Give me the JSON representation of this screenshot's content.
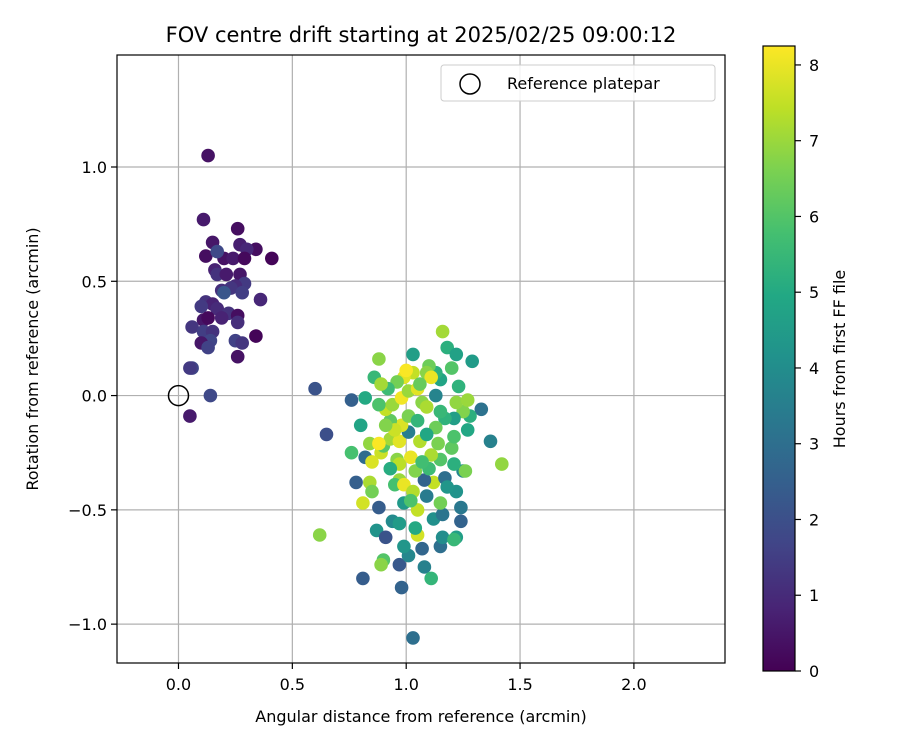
{
  "chart_data": {
    "type": "scatter",
    "title": "FOV centre drift starting at 2025/02/25 09:00:12",
    "xlabel": "Angular distance from reference (arcmin)",
    "ylabel": "Rotation from reference (arcmin)",
    "xlim": [
      -0.27,
      2.4
    ],
    "ylim": [
      -1.17,
      1.49
    ],
    "grid": true,
    "x_ticks": [
      "0.0",
      "0.5",
      "1.0",
      "1.5",
      "2.0"
    ],
    "x_tick_values": [
      0,
      0.5,
      1.0,
      1.5,
      2.0
    ],
    "y_ticks": [
      "−1.0",
      "−0.5",
      "0.0",
      "0.5",
      "1.0"
    ],
    "y_tick_values": [
      -1.0,
      -0.5,
      0.0,
      0.5,
      1.0
    ],
    "legend": {
      "placement": "top-right",
      "entries": [
        {
          "label": "Reference platepar",
          "marker": "open-circle",
          "color": "#000000"
        }
      ]
    },
    "reference_point": {
      "x": 0.0,
      "y": 0.0
    },
    "colorbar": {
      "label": "Hours from first FF file",
      "colormap": "viridis",
      "range": [
        0,
        8.25
      ],
      "ticks": [
        "0",
        "1",
        "2",
        "3",
        "4",
        "5",
        "6",
        "7",
        "8"
      ],
      "tick_values": [
        0,
        1,
        2,
        3,
        4,
        5,
        6,
        7,
        8
      ]
    },
    "points": [
      [
        0.13,
        1.05,
        0.4
      ],
      [
        0.11,
        0.77,
        0.6
      ],
      [
        0.26,
        0.73,
        0.3
      ],
      [
        0.15,
        0.67,
        0.5
      ],
      [
        0.27,
        0.66,
        0.7
      ],
      [
        0.34,
        0.64,
        0.3
      ],
      [
        0.3,
        0.64,
        0.9
      ],
      [
        0.41,
        0.6,
        0.1
      ],
      [
        0.12,
        0.61,
        0.3
      ],
      [
        0.2,
        0.6,
        0.4
      ],
      [
        0.24,
        0.6,
        0.6
      ],
      [
        0.29,
        0.6,
        0.2
      ],
      [
        0.17,
        0.63,
        1.8
      ],
      [
        0.16,
        0.55,
        0.8
      ],
      [
        0.27,
        0.53,
        0.5
      ],
      [
        0.17,
        0.53,
        1.2
      ],
      [
        0.21,
        0.53,
        0.6
      ],
      [
        0.29,
        0.49,
        1.4
      ],
      [
        0.25,
        0.48,
        1.0
      ],
      [
        0.23,
        0.47,
        1.3
      ],
      [
        0.19,
        0.46,
        1.1
      ],
      [
        0.2,
        0.45,
        2.2
      ],
      [
        0.28,
        0.45,
        1.5
      ],
      [
        0.36,
        0.42,
        0.9
      ],
      [
        0.12,
        0.41,
        1.2
      ],
      [
        0.15,
        0.4,
        0.8
      ],
      [
        0.1,
        0.39,
        1.4
      ],
      [
        0.17,
        0.38,
        1.0
      ],
      [
        0.22,
        0.36,
        1.2
      ],
      [
        0.26,
        0.35,
        0.3
      ],
      [
        0.11,
        0.33,
        0.5
      ],
      [
        0.19,
        0.34,
        0.8
      ],
      [
        0.13,
        0.34,
        0.2
      ],
      [
        0.26,
        0.32,
        1.1
      ],
      [
        0.06,
        0.3,
        1.3
      ],
      [
        0.11,
        0.28,
        1.5
      ],
      [
        0.15,
        0.28,
        1.2
      ],
      [
        0.34,
        0.26,
        0.1
      ],
      [
        0.14,
        0.24,
        1.7
      ],
      [
        0.1,
        0.23,
        0.5
      ],
      [
        0.25,
        0.24,
        1.6
      ],
      [
        0.28,
        0.23,
        1.3
      ],
      [
        0.13,
        0.21,
        1.6
      ],
      [
        0.26,
        0.17,
        0.4
      ],
      [
        0.06,
        0.12,
        1.7
      ],
      [
        0.05,
        0.12,
        1.4
      ],
      [
        0.14,
        0.0,
        1.8
      ],
      [
        0.05,
        -0.09,
        0.6
      ],
      [
        0.6,
        0.03,
        2.1
      ],
      [
        0.65,
        -0.17,
        2.0
      ],
      [
        0.76,
        -0.02,
        2.5
      ],
      [
        0.82,
        -0.01,
        5.0
      ],
      [
        0.86,
        0.08,
        5.5
      ],
      [
        0.88,
        0.16,
        6.8
      ],
      [
        0.8,
        -0.13,
        4.8
      ],
      [
        0.84,
        -0.21,
        6.9
      ],
      [
        0.76,
        -0.25,
        5.8
      ],
      [
        0.82,
        -0.27,
        2.9
      ],
      [
        0.78,
        -0.38,
        2.5
      ],
      [
        0.84,
        -0.38,
        7.2
      ],
      [
        0.81,
        -0.47,
        7.7
      ],
      [
        0.85,
        -0.42,
        6.5
      ],
      [
        0.88,
        -0.49,
        2.4
      ],
      [
        0.87,
        -0.59,
        4.2
      ],
      [
        0.91,
        -0.62,
        2.1
      ],
      [
        0.9,
        -0.72,
        6.0
      ],
      [
        0.89,
        -0.74,
        6.8
      ],
      [
        0.81,
        -0.8,
        2.4
      ],
      [
        0.97,
        -0.74,
        2.3
      ],
      [
        0.98,
        -0.84,
        2.6
      ],
      [
        1.03,
        -1.06,
        3.0
      ],
      [
        1.08,
        -0.75,
        3.6
      ],
      [
        1.11,
        -0.8,
        5.4
      ],
      [
        1.01,
        -0.7,
        3.8
      ],
      [
        0.99,
        -0.66,
        4.3
      ],
      [
        1.07,
        -0.67,
        2.7
      ],
      [
        1.15,
        -0.66,
        3.0
      ],
      [
        1.16,
        -0.62,
        4.0
      ],
      [
        1.22,
        -0.62,
        4.6
      ],
      [
        1.21,
        -0.63,
        5.5
      ],
      [
        1.24,
        -0.55,
        2.6
      ],
      [
        1.05,
        -0.61,
        7.7
      ],
      [
        0.94,
        -0.55,
        3.9
      ],
      [
        0.97,
        -0.56,
        4.5
      ],
      [
        1.04,
        -0.58,
        5.0
      ],
      [
        1.12,
        -0.54,
        4.1
      ],
      [
        1.16,
        -0.52,
        3.2
      ],
      [
        1.05,
        -0.5,
        7.5
      ],
      [
        0.99,
        -0.47,
        4.4
      ],
      [
        1.09,
        -0.44,
        3.4
      ],
      [
        1.15,
        -0.47,
        6.5
      ],
      [
        1.24,
        -0.49,
        3.3
      ],
      [
        1.22,
        -0.42,
        4.2
      ],
      [
        1.12,
        -0.38,
        7.5
      ],
      [
        1.08,
        -0.37,
        2.6
      ],
      [
        0.97,
        -0.37,
        7.0
      ],
      [
        0.95,
        -0.39,
        5.8
      ],
      [
        0.99,
        -0.39,
        8.0
      ],
      [
        1.03,
        -0.42,
        7.3
      ],
      [
        1.17,
        -0.36,
        3.0
      ],
      [
        1.25,
        -0.33,
        3.8
      ],
      [
        1.26,
        -0.33,
        6.6
      ],
      [
        1.42,
        -0.3,
        6.9
      ],
      [
        1.21,
        -0.3,
        5.2
      ],
      [
        1.15,
        -0.28,
        6.0
      ],
      [
        1.11,
        -0.26,
        7.2
      ],
      [
        1.02,
        -0.27,
        8.0
      ],
      [
        0.96,
        -0.28,
        6.8
      ],
      [
        0.89,
        -0.25,
        7.6
      ],
      [
        0.85,
        -0.29,
        7.8
      ],
      [
        0.9,
        -0.22,
        6.1
      ],
      [
        0.93,
        -0.19,
        7.1
      ],
      [
        0.88,
        -0.21,
        8.2
      ],
      [
        0.97,
        -0.2,
        7.9
      ],
      [
        1.06,
        -0.2,
        7.3
      ],
      [
        1.14,
        -0.21,
        6.6
      ],
      [
        1.2,
        -0.23,
        6.2
      ],
      [
        1.21,
        -0.18,
        5.9
      ],
      [
        1.27,
        -0.15,
        4.9
      ],
      [
        1.37,
        -0.2,
        3.6
      ],
      [
        1.33,
        -0.06,
        3.1
      ],
      [
        1.28,
        -0.09,
        5.2
      ],
      [
        1.25,
        -0.07,
        6.7
      ],
      [
        1.21,
        -0.1,
        4.6
      ],
      [
        1.17,
        -0.1,
        5.3
      ],
      [
        1.13,
        -0.14,
        6.4
      ],
      [
        1.09,
        -0.17,
        4.9
      ],
      [
        1.01,
        -0.16,
        3.5
      ],
      [
        0.98,
        -0.13,
        7.8
      ],
      [
        0.93,
        -0.11,
        6.2
      ],
      [
        0.91,
        -0.06,
        7.5
      ],
      [
        0.88,
        -0.04,
        5.9
      ],
      [
        0.94,
        -0.04,
        7.0
      ],
      [
        0.98,
        -0.01,
        8.1
      ],
      [
        1.01,
        0.02,
        7.0
      ],
      [
        1.05,
        0.03,
        7.9
      ],
      [
        1.07,
        -0.03,
        6.8
      ],
      [
        1.13,
        0.0,
        3.7
      ],
      [
        1.15,
        -0.07,
        5.5
      ],
      [
        1.22,
        -0.03,
        6.9
      ],
      [
        1.27,
        -0.02,
        7.0
      ],
      [
        1.23,
        0.04,
        5.3
      ],
      [
        1.15,
        0.07,
        4.8
      ],
      [
        1.13,
        0.1,
        5.2
      ],
      [
        1.1,
        0.13,
        6.4
      ],
      [
        1.09,
        0.1,
        6.8
      ],
      [
        1.03,
        0.1,
        7.5
      ],
      [
        0.99,
        0.08,
        7.9
      ],
      [
        0.96,
        0.06,
        6.5
      ],
      [
        0.92,
        0.03,
        5.6
      ],
      [
        0.89,
        0.05,
        7.1
      ],
      [
        1.0,
        0.11,
        8.2
      ],
      [
        1.11,
        0.08,
        8.0
      ],
      [
        1.18,
        0.21,
        5.2
      ],
      [
        1.22,
        0.18,
        4.7
      ],
      [
        1.29,
        0.15,
        4.5
      ],
      [
        1.16,
        0.28,
        7.1
      ],
      [
        1.03,
        0.18,
        4.6
      ],
      [
        1.2,
        0.12,
        6.0
      ],
      [
        1.06,
        0.05,
        6.3
      ],
      [
        0.97,
        -0.3,
        7.4
      ],
      [
        1.04,
        -0.33,
        6.7
      ],
      [
        1.1,
        -0.32,
        5.6
      ],
      [
        1.18,
        -0.4,
        4.3
      ],
      [
        0.93,
        -0.32,
        5.1
      ],
      [
        1.01,
        -0.09,
        6.6
      ],
      [
        1.05,
        -0.11,
        5.4
      ],
      [
        0.95,
        -0.15,
        7.6
      ],
      [
        1.09,
        -0.05,
        7.2
      ],
      [
        0.91,
        -0.13,
        6.7
      ],
      [
        1.02,
        -0.46,
        5.9
      ],
      [
        1.07,
        -0.29,
        5.7
      ],
      [
        0.62,
        -0.61,
        6.8
      ]
    ]
  }
}
